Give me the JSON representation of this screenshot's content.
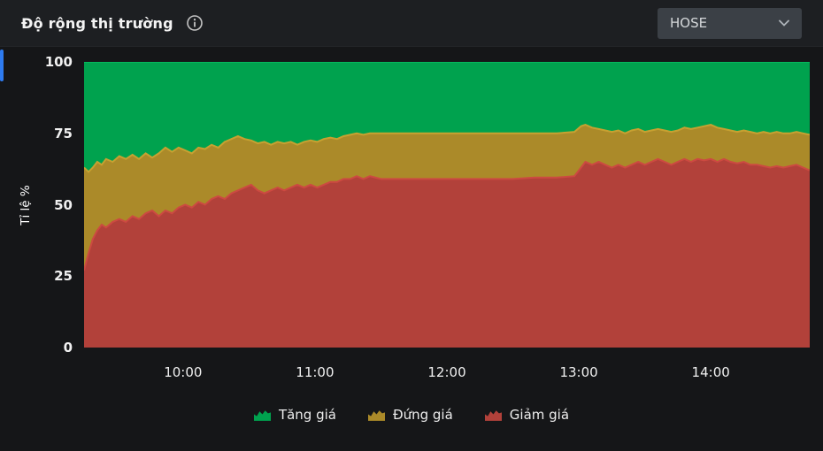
{
  "header": {
    "title": "Độ rộng thị trường",
    "exchange": "HOSE"
  },
  "chart_data": {
    "type": "area",
    "stacked": true,
    "unit": "%",
    "title": "",
    "xlabel": "",
    "ylabel": "Tỉ lệ %",
    "ylim": [
      0,
      100
    ],
    "yticks": [
      0,
      25,
      50,
      75,
      100
    ],
    "grid": false,
    "legend_position": "bottom",
    "xticks": [
      {
        "m": 600,
        "label": "10:00"
      },
      {
        "m": 660,
        "label": "11:00"
      },
      {
        "m": 720,
        "label": "12:00"
      },
      {
        "m": 780,
        "label": "13:00"
      },
      {
        "m": 840,
        "label": "14:00"
      }
    ],
    "x_minutes": [
      555,
      557,
      559,
      561,
      563,
      565,
      568,
      571,
      574,
      577,
      580,
      583,
      586,
      589,
      592,
      595,
      598,
      601,
      604,
      607,
      610,
      613,
      616,
      619,
      622,
      625,
      628,
      631,
      634,
      637,
      640,
      643,
      646,
      649,
      652,
      655,
      658,
      661,
      664,
      667,
      670,
      673,
      676,
      679,
      682,
      685,
      690,
      695,
      700,
      710,
      720,
      730,
      740,
      750,
      760,
      770,
      778,
      781,
      783,
      786,
      789,
      792,
      795,
      798,
      801,
      804,
      807,
      810,
      813,
      816,
      819,
      822,
      825,
      828,
      831,
      834,
      837,
      840,
      843,
      846,
      849,
      852,
      855,
      858,
      861,
      864,
      867,
      870,
      873,
      876,
      879,
      882,
      885
    ],
    "series": [
      {
        "name": "Tăng giá",
        "color": "#00a24e",
        "line_color": "#05b95c",
        "top_pct": 100
      },
      {
        "name": "Đứng giá",
        "color": "#ab8a29",
        "line_color": "#c7a131",
        "top_pct": [
          63,
          61.5,
          63,
          65,
          64,
          66,
          65,
          67,
          66,
          67.5,
          66,
          68,
          66.5,
          68,
          70,
          68.5,
          70,
          69,
          68,
          70,
          69.5,
          71,
          70,
          72,
          73,
          74,
          73,
          72.5,
          71.5,
          72,
          71,
          72,
          71.5,
          72,
          71,
          72,
          72.5,
          72,
          73,
          73.5,
          73,
          74,
          74.5,
          75,
          74.5,
          75,
          75,
          75,
          75,
          75,
          75,
          75,
          75,
          75,
          75,
          75,
          75.5,
          77.5,
          78,
          77,
          76.5,
          76,
          75.5,
          76,
          75,
          76,
          76.5,
          75.5,
          76,
          76.5,
          76,
          75.5,
          76,
          77,
          76.5,
          77,
          77.5,
          78,
          77,
          76.5,
          76,
          75.5,
          76,
          75.5,
          75,
          75.5,
          75,
          75.5,
          75,
          75,
          75.5,
          75,
          74.5
        ]
      },
      {
        "name": "Giảm giá",
        "color": "#b2413a",
        "line_color": "#cc4a41",
        "top_pct": [
          27,
          33,
          38,
          41,
          43,
          42,
          44,
          45,
          44,
          46,
          45,
          47,
          48,
          46,
          48,
          47,
          49,
          50,
          49,
          51,
          50,
          52,
          53,
          52,
          54,
          55,
          56,
          57,
          55,
          54,
          55,
          56,
          55,
          56,
          57,
          56,
          57,
          56,
          57,
          58,
          58,
          59,
          59,
          60,
          59,
          60,
          59,
          59,
          59,
          59,
          59,
          59,
          59,
          59,
          59.5,
          59.5,
          60,
          63,
          65,
          64,
          65,
          64,
          63,
          64,
          63,
          64,
          65,
          64,
          65,
          66,
          65,
          64,
          65,
          66,
          65,
          66,
          65.5,
          66,
          65,
          66,
          65,
          64.5,
          65,
          64,
          64,
          63.5,
          63,
          63.5,
          63,
          63.5,
          64,
          63,
          62
        ]
      }
    ]
  }
}
